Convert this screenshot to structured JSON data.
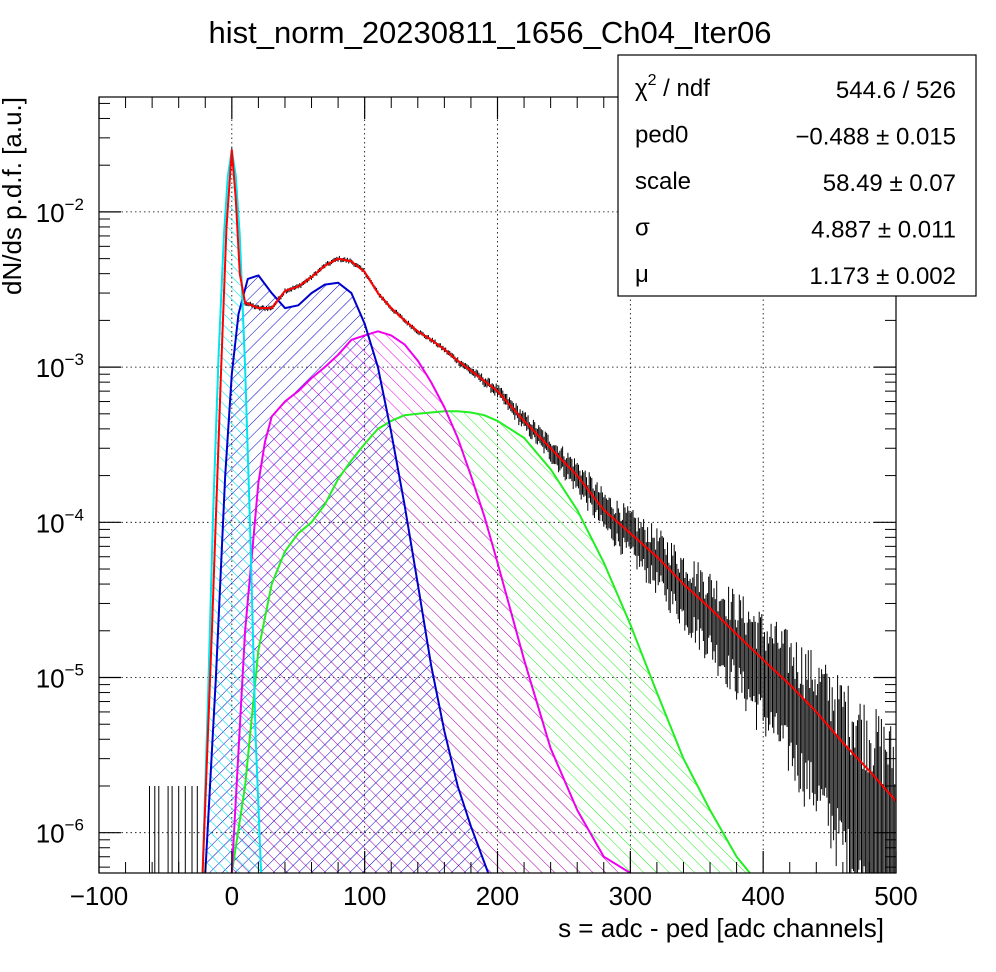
{
  "chart_data": {
    "type": "line",
    "title": "hist_norm_20230811_1656_Ch04_Iter06",
    "xlabel": "s = adc - ped [adc channels]",
    "ylabel": "dN/ds p.d.f. [a.u.]",
    "xlim": [
      -100,
      500
    ],
    "ylim": [
      5.5e-07,
      0.055
    ],
    "y_scale": "log",
    "grid": true,
    "x_ticks": [
      {
        "value": -100,
        "label": "−100"
      },
      {
        "value": 0,
        "label": "0"
      },
      {
        "value": 100,
        "label": "100"
      },
      {
        "value": 200,
        "label": "200"
      },
      {
        "value": 300,
        "label": "300"
      },
      {
        "value": 400,
        "label": "400"
      },
      {
        "value": 500,
        "label": "500"
      }
    ],
    "y_ticks": [
      {
        "value": 0.01,
        "mantissa": "10",
        "exponent": "−2"
      },
      {
        "value": 0.001,
        "mantissa": "10",
        "exponent": "−3"
      },
      {
        "value": 0.0001,
        "mantissa": "10",
        "exponent": "−4"
      },
      {
        "value": 1e-05,
        "mantissa": "10",
        "exponent": "−5"
      },
      {
        "value": 1e-06,
        "mantissa": "10",
        "exponent": "−6"
      }
    ],
    "series": [
      {
        "color": "#ff0000",
        "role": "total-fit",
        "x": [
          -22,
          -15,
          -8,
          -4,
          0,
          3,
          6,
          10,
          15,
          20,
          30,
          40,
          50,
          60,
          70,
          80,
          90,
          100,
          110,
          120,
          130,
          140,
          150,
          160,
          170,
          180,
          200,
          220,
          240,
          260,
          280,
          300,
          320,
          340,
          360,
          380,
          400,
          420,
          440,
          460,
          480,
          500
        ],
        "y": [
          5.5e-07,
          2e-05,
          0.001,
          0.008,
          0.025,
          0.012,
          0.004,
          0.0026,
          0.0025,
          0.0024,
          0.0024,
          0.0031,
          0.0033,
          0.0038,
          0.0045,
          0.005,
          0.0048,
          0.0041,
          0.003,
          0.0024,
          0.002,
          0.0017,
          0.0015,
          0.0013,
          0.0011,
          0.00095,
          0.0007,
          0.00045,
          0.0003,
          0.0002,
          0.00012,
          8.5e-05,
          6e-05,
          4e-05,
          2.8e-05,
          1.9e-05,
          1.3e-05,
          9e-06,
          6e-06,
          3.8e-06,
          2.5e-06,
          1.6e-06
        ]
      },
      {
        "color": "#00e5ee",
        "role": "pedestal-component",
        "x": [
          -22,
          -18,
          -14,
          -10,
          -6,
          -3,
          0,
          3,
          6,
          10,
          14,
          18,
          22
        ],
        "y": [
          5.5e-07,
          7e-06,
          0.00012,
          0.0012,
          0.007,
          0.017,
          0.025,
          0.017,
          0.007,
          0.001,
          8e-05,
          4e-06,
          5.5e-07
        ]
      },
      {
        "color": "#0000cc",
        "role": "first-component",
        "x": [
          -20,
          -12,
          -5,
          0,
          5,
          12,
          20,
          30,
          40,
          50,
          60,
          70,
          80,
          90,
          100,
          110,
          120,
          130,
          140,
          150,
          160,
          170,
          180,
          193
        ],
        "y": [
          5.5e-07,
          1e-05,
          0.0002,
          0.0009,
          0.0022,
          0.0037,
          0.0039,
          0.003,
          0.0024,
          0.0025,
          0.003,
          0.0034,
          0.0035,
          0.003,
          0.0019,
          0.001,
          0.00038,
          0.00013,
          4e-05,
          1.2e-05,
          4.5e-06,
          2e-06,
          1.1e-06,
          5.5e-07
        ]
      },
      {
        "color": "#ee00ee",
        "role": "second-component",
        "x": [
          0,
          10,
          20,
          25,
          30,
          40,
          50,
          60,
          70,
          80,
          90,
          100,
          110,
          120,
          130,
          140,
          150,
          160,
          170,
          180,
          190,
          200,
          220,
          240,
          260,
          280,
          300
        ],
        "y": [
          5.5e-07,
          2e-05,
          0.00018,
          0.00033,
          0.00048,
          0.0006,
          0.0007,
          0.00085,
          0.001,
          0.0012,
          0.0015,
          0.0016,
          0.0017,
          0.0016,
          0.0014,
          0.0011,
          0.0008,
          0.00055,
          0.00035,
          0.0002,
          0.00011,
          5.5e-05,
          1.3e-05,
          3.5e-06,
          1.4e-06,
          7e-07,
          5.5e-07
        ]
      },
      {
        "color": "#22ee22",
        "role": "third-component",
        "x": [
          0,
          10,
          20,
          30,
          40,
          50,
          60,
          70,
          80,
          90,
          100,
          110,
          120,
          130,
          140,
          150,
          160,
          170,
          180,
          190,
          200,
          220,
          240,
          260,
          280,
          300,
          320,
          340,
          360,
          380,
          390
        ],
        "y": [
          5.5e-07,
          2e-06,
          1.5e-05,
          4e-05,
          6.5e-05,
          8.5e-05,
          0.0001,
          0.00013,
          0.00019,
          0.00025,
          0.00032,
          0.0004,
          0.00045,
          0.00049,
          0.0005,
          0.00051,
          0.00052,
          0.00052,
          0.00051,
          0.00049,
          0.00045,
          0.00035,
          0.00022,
          0.00012,
          5.5e-05,
          2.2e-05,
          8e-06,
          3e-06,
          1.4e-06,
          7e-07,
          5.5e-07
        ]
      }
    ],
    "fill_order": [
      "green",
      "magenta",
      "blue",
      "cyan"
    ],
    "data_points_color": "#000000"
  },
  "stats_box": {
    "rows": [
      {
        "name_main": "χ",
        "name_sup": "2",
        "name_rest": " / ndf",
        "value": "544.6 / 526"
      },
      {
        "name_main": "ped0",
        "name_sup": "",
        "name_rest": "",
        "value": "−0.488 ± 0.015"
      },
      {
        "name_main": "scale",
        "name_sup": "",
        "name_rest": "",
        "value": "58.49 ± 0.07"
      },
      {
        "name_main": "σ",
        "name_sup": "",
        "name_rest": "",
        "value": "4.887 ± 0.011"
      },
      {
        "name_main": "μ",
        "name_sup": "",
        "name_rest": "",
        "value": "1.173 ± 0.002"
      }
    ]
  }
}
